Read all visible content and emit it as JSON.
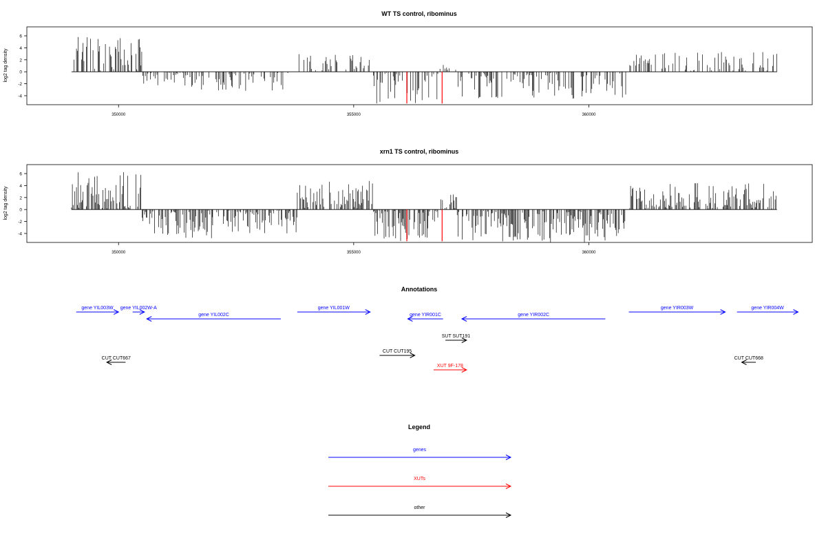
{
  "chart_data": [
    {
      "type": "bar",
      "title": "WT TS control, ribominus",
      "xlabel": "",
      "ylabel": "log2 tag density",
      "xlim": [
        348050,
        364750
      ],
      "ylim": [
        -5.5,
        7.5
      ],
      "x_ticks": [
        350000,
        355000,
        360000
      ],
      "x_tick_labels": [
        "350000",
        "355000",
        "360000"
      ],
      "y_ticks": [
        -4,
        -2,
        0,
        2,
        4,
        6
      ],
      "y_tick_labels": [
        "-4",
        "-2",
        "0",
        "2",
        "4",
        "6"
      ],
      "grid": false,
      "baseline": 0,
      "x_range": [
        349000,
        364000
      ],
      "highlighted_bars": [
        {
          "x": 356130,
          "y": -5.3,
          "color": "#ff0000"
        },
        {
          "x": 356880,
          "y": -5.3,
          "color": "#ff0000"
        }
      ],
      "density_profile": [
        {
          "from": 349000,
          "to": 350500,
          "sign": "positive",
          "max": 6.2
        },
        {
          "from": 350500,
          "to": 352000,
          "sign": "negative",
          "max": 3.0
        },
        {
          "from": 352000,
          "to": 353800,
          "sign": "negative",
          "max": 3.2
        },
        {
          "from": 353800,
          "to": 355400,
          "sign": "positive",
          "max": 3.1
        },
        {
          "from": 355400,
          "to": 356800,
          "sign": "negative",
          "max": 5.3
        },
        {
          "from": 356800,
          "to": 357200,
          "sign": "positive",
          "max": 1.2
        },
        {
          "from": 357200,
          "to": 360800,
          "sign": "negative",
          "max": 4.5
        },
        {
          "from": 360800,
          "to": 364000,
          "sign": "positive",
          "max": 3.3
        }
      ]
    },
    {
      "type": "bar",
      "title": "xrn1 TS control, ribominus",
      "xlabel": "",
      "ylabel": "log2 tag density",
      "xlim": [
        348050,
        364750
      ],
      "ylim": [
        -5.5,
        7.5
      ],
      "x_ticks": [
        350000,
        355000,
        360000
      ],
      "x_tick_labels": [
        "350000",
        "355000",
        "360000"
      ],
      "y_ticks": [
        -4,
        -2,
        0,
        2,
        4,
        6
      ],
      "y_tick_labels": [
        "-4",
        "-2",
        "0",
        "2",
        "4",
        "6"
      ],
      "grid": false,
      "baseline": 0,
      "x_range": [
        349000,
        364000
      ],
      "highlighted_bars": [
        {
          "x": 356130,
          "y": -5.3,
          "color": "#ff0000"
        },
        {
          "x": 356880,
          "y": -5.3,
          "color": "#ff0000"
        }
      ],
      "density_profile": [
        {
          "from": 349000,
          "to": 350500,
          "sign": "positive",
          "max": 6.3
        },
        {
          "from": 350500,
          "to": 352000,
          "sign": "negative",
          "max": 4.8
        },
        {
          "from": 352000,
          "to": 353800,
          "sign": "negative",
          "max": 4.0
        },
        {
          "from": 353800,
          "to": 355400,
          "sign": "positive",
          "max": 4.9
        },
        {
          "from": 355400,
          "to": 356800,
          "sign": "negative",
          "max": 5.3
        },
        {
          "from": 356800,
          "to": 357200,
          "sign": "positive",
          "max": 2.6
        },
        {
          "from": 357200,
          "to": 360800,
          "sign": "negative",
          "max": 5.5
        },
        {
          "from": 360800,
          "to": 364000,
          "sign": "positive",
          "max": 4.5
        }
      ]
    }
  ],
  "annotations": {
    "title": "Annotations",
    "features": [
      {
        "label": "gene YIL003W",
        "start": 349100,
        "end": 350000,
        "direction": "right",
        "color": "#0000ff",
        "row": 0
      },
      {
        "label": "gene YIL002W-A",
        "start": 350300,
        "end": 350550,
        "direction": "right",
        "color": "#0000ff",
        "row": 0
      },
      {
        "label": "gene YIL002C",
        "start": 350600,
        "end": 353450,
        "direction": "left",
        "color": "#0000ff",
        "row": 1
      },
      {
        "label": "gene YIL001W",
        "start": 353800,
        "end": 355350,
        "direction": "right",
        "color": "#0000ff",
        "row": 0
      },
      {
        "label": "gene YIR001C",
        "start": 356150,
        "end": 356900,
        "direction": "left",
        "color": "#0000ff",
        "row": 1
      },
      {
        "label": "gene YIR002C",
        "start": 357300,
        "end": 360350,
        "direction": "left",
        "color": "#0000ff",
        "row": 1
      },
      {
        "label": "gene YIR003W",
        "start": 360850,
        "end": 362900,
        "direction": "right",
        "color": "#0000ff",
        "row": 0
      },
      {
        "label": "gene YIR004W",
        "start": 363150,
        "end": 364450,
        "direction": "right",
        "color": "#0000ff",
        "row": 0
      },
      {
        "label": "SUT SUT191",
        "start": 356950,
        "end": 357400,
        "direction": "right",
        "color": "#000000",
        "row": 2
      },
      {
        "label": "CUT CUT195",
        "start": 355550,
        "end": 356300,
        "direction": "right",
        "color": "#000000",
        "row": 3
      },
      {
        "label": "CUT CUT667",
        "start": 349750,
        "end": 350150,
        "direction": "left",
        "color": "#000000",
        "row": 4
      },
      {
        "label": "CUT CUT668",
        "start": 363250,
        "end": 363550,
        "direction": "left",
        "color": "#000000",
        "row": 4
      },
      {
        "label": "XUT 9F-178",
        "start": 356700,
        "end": 357400,
        "direction": "right",
        "color": "#ff0000",
        "row": 5
      }
    ]
  },
  "legend": {
    "title": "Legend",
    "items": [
      {
        "label": "genes",
        "color": "#0000ff"
      },
      {
        "label": "XUTs",
        "color": "#ff0000"
      },
      {
        "label": "other",
        "color": "#000000"
      }
    ]
  }
}
